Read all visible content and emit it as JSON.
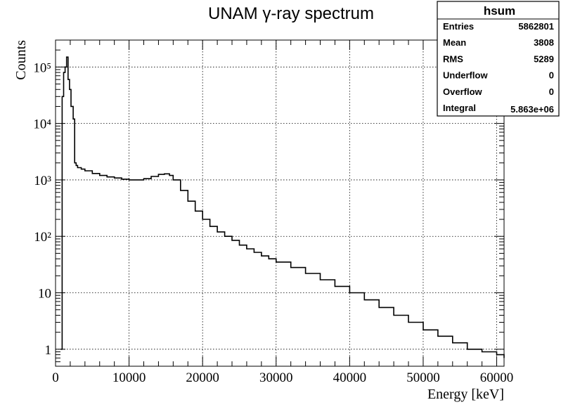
{
  "chart_data": {
    "type": "histogram",
    "title": "UNAM γ-ray spectrum",
    "xlabel": "Energy [keV]",
    "ylabel": "Counts",
    "y_scale": "log",
    "xlim": [
      0,
      61000
    ],
    "ylim": [
      0.5,
      300000
    ],
    "grid": true,
    "x_ticks": [
      {
        "value": 0,
        "label": "0"
      },
      {
        "value": 10000,
        "label": "10000"
      },
      {
        "value": 20000,
        "label": "20000"
      },
      {
        "value": 30000,
        "label": "30000"
      },
      {
        "value": 40000,
        "label": "40000"
      },
      {
        "value": 50000,
        "label": "50000"
      },
      {
        "value": 60000,
        "label": "60000"
      }
    ],
    "y_ticks": [
      {
        "value": 1,
        "label": "1"
      },
      {
        "value": 10,
        "label": "10"
      },
      {
        "value": 100,
        "label": "10²"
      },
      {
        "value": 1000,
        "label": "10³"
      },
      {
        "value": 10000,
        "label": "10⁴"
      },
      {
        "value": 100000,
        "label": "10⁵"
      }
    ],
    "line_color": "#000000",
    "series": [
      {
        "x": [
          700,
          900,
          1100,
          1300,
          1500,
          1700,
          1900,
          2100,
          2400,
          2600,
          2800,
          3000,
          3500,
          4000,
          5000,
          6000,
          7000,
          8000,
          9000,
          10000,
          11000,
          12000,
          13000,
          14000,
          14800,
          15500,
          16000,
          17000,
          18000,
          19000,
          20000,
          21000,
          22000,
          23000,
          24000,
          25000,
          26000,
          27000,
          28000,
          29000,
          30000,
          32000,
          34000,
          36000,
          38000,
          40000,
          42000,
          44000,
          46000,
          48000,
          50000,
          52000,
          54000,
          56000,
          58000,
          60000,
          61000
        ],
        "y": [
          1,
          30000,
          80000,
          100000,
          150000,
          60000,
          40000,
          20000,
          12000,
          2000,
          1800,
          1650,
          1550,
          1450,
          1300,
          1200,
          1130,
          1080,
          1030,
          1000,
          1000,
          1050,
          1150,
          1250,
          1280,
          1200,
          1000,
          650,
          420,
          280,
          200,
          150,
          120,
          100,
          85,
          70,
          60,
          52,
          45,
          40,
          35,
          28,
          22,
          17,
          13,
          10,
          7.5,
          5.5,
          4,
          3,
          2.2,
          1.7,
          1.3,
          1,
          0.9,
          0.8,
          0.7
        ]
      }
    ]
  },
  "stats_box": {
    "title": "hsum",
    "rows": [
      {
        "label": "Entries",
        "value": "5862801"
      },
      {
        "label": "Mean",
        "value": "3808"
      },
      {
        "label": "RMS",
        "value": "5289"
      },
      {
        "label": "Underflow",
        "value": "0"
      },
      {
        "label": "Overflow",
        "value": "0"
      },
      {
        "label": "Integral",
        "value": "5.863e+06"
      }
    ]
  }
}
